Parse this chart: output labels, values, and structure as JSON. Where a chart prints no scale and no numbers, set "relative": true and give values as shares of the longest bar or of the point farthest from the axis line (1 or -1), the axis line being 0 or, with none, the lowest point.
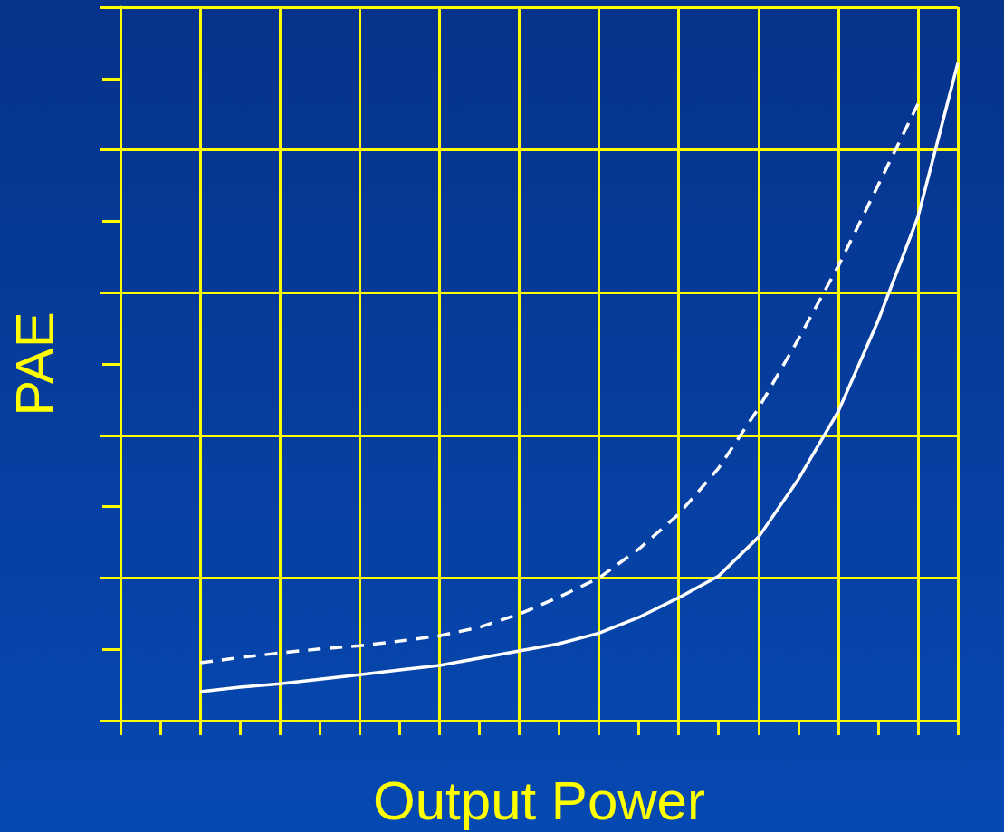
{
  "chart_data": {
    "type": "line",
    "xlabel": "Output Power",
    "ylabel": "PAE",
    "relative": true,
    "grid": true,
    "marker": "none",
    "categories": [
      null,
      null,
      null,
      null,
      null,
      null,
      null,
      null,
      null,
      null,
      null,
      null,
      null,
      null,
      null,
      null,
      null,
      null,
      null,
      null,
      null,
      null
    ],
    "series": [
      {
        "color": "#ffffff",
        "line_style": "dashed",
        "values": [
          null,
          null,
          0.088,
          0.096,
          0.103,
          0.109,
          0.114,
          0.121,
          0.129,
          0.142,
          0.162,
          0.188,
          0.217,
          0.261,
          0.314,
          0.384,
          0.475,
          0.58,
          0.691,
          0.814,
          0.938,
          null
        ]
      },
      {
        "color": "#ffffff",
        "line_style": "solid",
        "values": [
          null,
          null,
          0.044,
          0.051,
          0.056,
          0.063,
          0.07,
          0.077,
          0.084,
          0.095,
          0.106,
          0.117,
          0.133,
          0.157,
          0.187,
          0.22,
          0.279,
          0.367,
          0.47,
          0.608,
          0.766,
          1
        ]
      }
    ]
  }
}
